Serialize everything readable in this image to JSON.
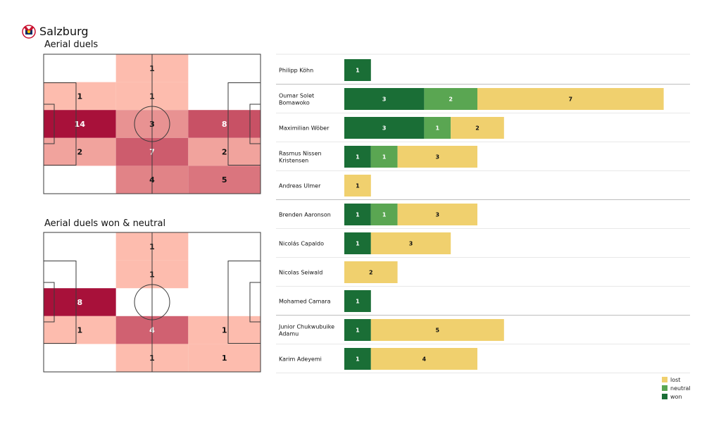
{
  "header": {
    "team": "Salzburg",
    "logo_icon": "salzburg-bull-crest-icon"
  },
  "colors": {
    "won": "#1a6e36",
    "neutral": "#5aa652",
    "lost": "#f0d06e",
    "heat_low": "#fdbcae",
    "heat_high": "#a8113a",
    "pitch_line": "#3a3a3a"
  },
  "chart_data": [
    {
      "type": "heatmap",
      "title": "Aerial duels",
      "rows": 5,
      "cols": 3,
      "values": [
        [
          null,
          1,
          null
        ],
        [
          1,
          1,
          null
        ],
        [
          14,
          3,
          8
        ],
        [
          2,
          7,
          2
        ],
        [
          null,
          4,
          5
        ]
      ]
    },
    {
      "type": "heatmap",
      "title": "Aerial duels won & neutral",
      "rows": 5,
      "cols": 3,
      "values": [
        [
          null,
          1,
          null
        ],
        [
          null,
          1,
          null
        ],
        [
          8,
          null,
          null
        ],
        [
          1,
          4,
          1
        ],
        [
          null,
          1,
          1
        ]
      ]
    },
    {
      "type": "bar",
      "orientation": "horizontal",
      "stacked": true,
      "categories": [
        "Philipp Köhn",
        "Oumar Solet Bomawoko",
        "Maximilian Wöber",
        "Rasmus Nissen Kristensen",
        "Andreas Ulmer",
        "Brenden  Aaronson",
        "Nicolás Capaldo",
        "Nicolas Seiwald",
        "Mohamed Camara",
        "Junior Chukwubuike Adamu",
        "Karim Adeyemi"
      ],
      "category_lines": [
        [
          "Philipp Köhn"
        ],
        [
          "Oumar Solet",
          "Bomawoko"
        ],
        [
          "Maximilian Wöber"
        ],
        [
          "Rasmus Nissen",
          "Kristensen"
        ],
        [
          "Andreas Ulmer"
        ],
        [
          "Brenden  Aaronson"
        ],
        [
          "Nicolás Capaldo"
        ],
        [
          "Nicolas Seiwald"
        ],
        [
          "Mohamed Camara"
        ],
        [
          "Junior Chukwubuike",
          "Adamu"
        ],
        [
          "Karim Adeyemi"
        ]
      ],
      "group_breaks_after": [
        0,
        4,
        8
      ],
      "series": [
        {
          "name": "won",
          "values": [
            1,
            3,
            3,
            1,
            0,
            1,
            1,
            0,
            1,
            1,
            1
          ]
        },
        {
          "name": "neutral",
          "values": [
            0,
            2,
            1,
            1,
            0,
            1,
            0,
            0,
            0,
            0,
            0
          ]
        },
        {
          "name": "lost",
          "values": [
            0,
            7,
            2,
            3,
            1,
            3,
            3,
            2,
            0,
            5,
            4
          ]
        }
      ],
      "legend": [
        "lost",
        "neutral",
        "won"
      ],
      "legend_position": "bottom-right"
    }
  ]
}
